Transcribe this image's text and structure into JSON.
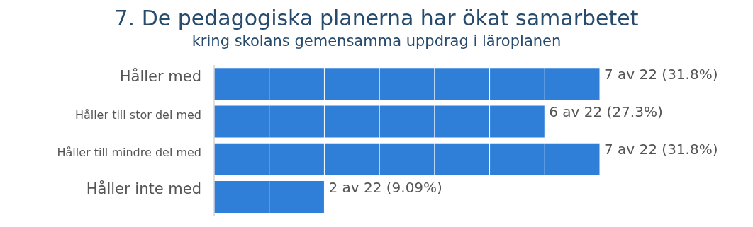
{
  "chart_data": {
    "type": "bar",
    "orientation": "horizontal",
    "title": "7. De pedagogiska planerna har ökat samarbetet",
    "subtitle": "kring skolans gemensamma uppdrag i läroplanen",
    "categories": [
      "Håller med",
      "Håller till stor del med",
      "Håller till mindre del med",
      "Håller inte med"
    ],
    "values": [
      7,
      6,
      7,
      2
    ],
    "color": "#2f7ed8",
    "value_labels": [
      "7 av 22 (31.8%)",
      "6 av 22 (27.3%)",
      "7 av 22 (31.8%)",
      "2 av 22 (9.09%)"
    ],
    "xlim": [
      0,
      7
    ],
    "xticks": [
      0,
      1,
      2,
      3,
      4,
      5,
      6,
      7
    ],
    "grid": "x",
    "tick_labels": "y"
  }
}
